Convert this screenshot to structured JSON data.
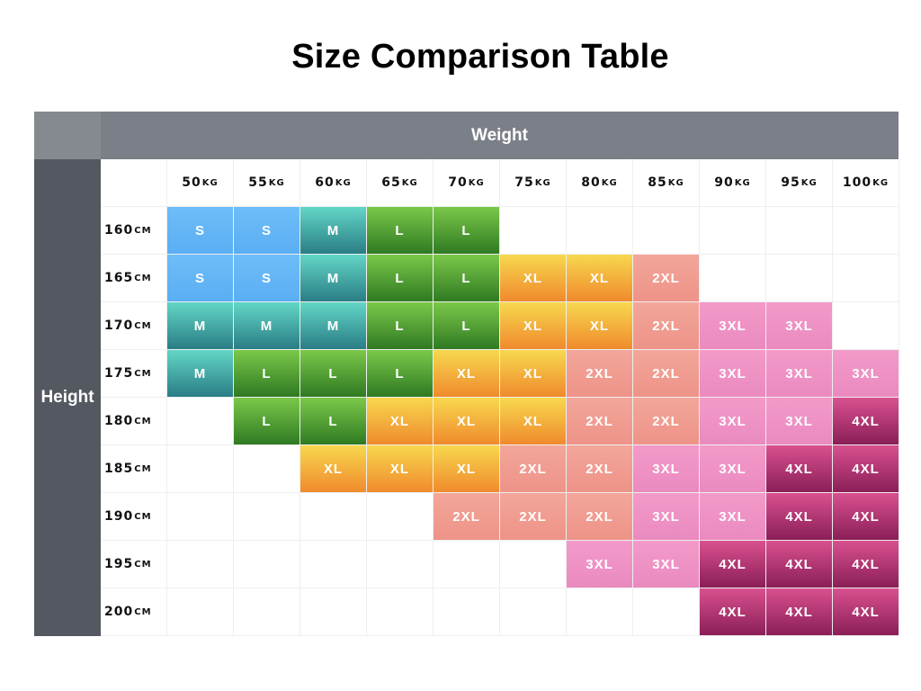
{
  "title": "Size Comparison Table",
  "col_header": "Weight",
  "row_header": "Height",
  "weights": [
    {
      "num": "50",
      "unit": "KG"
    },
    {
      "num": "55",
      "unit": "KG"
    },
    {
      "num": "60",
      "unit": "KG"
    },
    {
      "num": "65",
      "unit": "KG"
    },
    {
      "num": "70",
      "unit": "KG"
    },
    {
      "num": "75",
      "unit": "KG"
    },
    {
      "num": "80",
      "unit": "KG"
    },
    {
      "num": "85",
      "unit": "KG"
    },
    {
      "num": "90",
      "unit": "KG"
    },
    {
      "num": "95",
      "unit": "KG"
    },
    {
      "num": "100",
      "unit": "KG"
    }
  ],
  "heights": [
    {
      "num": "160",
      "unit": "CM"
    },
    {
      "num": "165",
      "unit": "CM"
    },
    {
      "num": "170",
      "unit": "CM"
    },
    {
      "num": "175",
      "unit": "CM"
    },
    {
      "num": "180",
      "unit": "CM"
    },
    {
      "num": "185",
      "unit": "CM"
    },
    {
      "num": "190",
      "unit": "CM"
    },
    {
      "num": "195",
      "unit": "CM"
    },
    {
      "num": "200",
      "unit": "CM"
    }
  ],
  "sizes": [
    [
      "S",
      "S",
      "M",
      "L",
      "L",
      "",
      "",
      "",
      "",
      "",
      ""
    ],
    [
      "S",
      "S",
      "M",
      "L",
      "L",
      "XL",
      "XL",
      "2XL",
      "",
      "",
      ""
    ],
    [
      "M",
      "M",
      "M",
      "L",
      "L",
      "XL",
      "XL",
      "2XL",
      "3XL",
      "3XL",
      ""
    ],
    [
      "M",
      "L",
      "L",
      "L",
      "XL",
      "XL",
      "2XL",
      "2XL",
      "3XL",
      "3XL",
      "3XL"
    ],
    [
      "",
      "L",
      "L",
      "XL",
      "XL",
      "XL",
      "2XL",
      "2XL",
      "3XL",
      "3XL",
      "4XL"
    ],
    [
      "",
      "",
      "XL",
      "XL",
      "XL",
      "2XL",
      "2XL",
      "3XL",
      "3XL",
      "4XL",
      "4XL"
    ],
    [
      "",
      "",
      "",
      "",
      "2XL",
      "2XL",
      "2XL",
      "3XL",
      "3XL",
      "4XL",
      "4XL"
    ],
    [
      "",
      "",
      "",
      "",
      "",
      "",
      "3XL",
      "3XL",
      "4XL",
      "4XL",
      "4XL"
    ],
    [
      "",
      "",
      "",
      "",
      "",
      "",
      "",
      "",
      "4XL",
      "4XL",
      "4XL"
    ]
  ],
  "size_colors": {
    "S": "#5aaef3",
    "M": "#3a9aa0",
    "L": "#4a9a2e",
    "XL": "#f5b83c",
    "2XL": "#f09c90",
    "3XL": "#f092c4",
    "4XL": "#b23a74"
  }
}
